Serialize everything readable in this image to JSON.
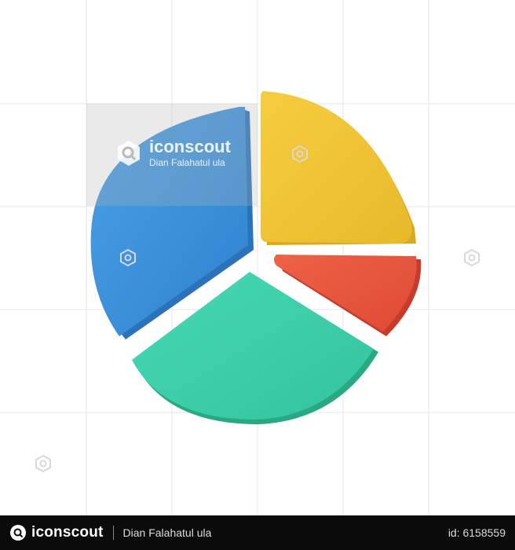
{
  "watermark": {
    "brand": "iconscout",
    "author": "Dian Falahatul ula"
  },
  "footer": {
    "brand": "iconscout",
    "author": "Dian Falahatul ula",
    "asset_id": "id: 6158559"
  },
  "colors": {
    "blue": "#3b8fd9",
    "yellow": "#f1c436",
    "red": "#e6553f",
    "teal": "#3ecfab",
    "grid": "#e6e6e6",
    "footer_bg": "#0b0b0b"
  },
  "icons": [
    "pie-chart-3d-icon",
    "iconscout-logo-icon",
    "watermark-badge-icon"
  ]
}
